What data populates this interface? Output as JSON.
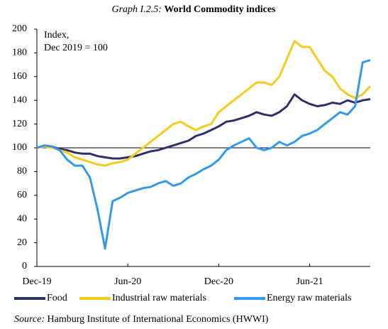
{
  "chart_data": {
    "type": "line",
    "title_label": "Graph I.2.5:",
    "title": "World Commodity indices",
    "annotations": [
      "Index,",
      "Dec 2019 = 100"
    ],
    "source_label": "Source:",
    "source": "Hamburg Institute of International Economics (HWWI)",
    "categories": [
      "Dec-19",
      null,
      null,
      null,
      null,
      null,
      null,
      null,
      null,
      null,
      null,
      null,
      "Jun-20",
      null,
      null,
      null,
      null,
      null,
      null,
      null,
      null,
      null,
      null,
      null,
      "Dec-20",
      null,
      null,
      null,
      null,
      null,
      null,
      null,
      null,
      null,
      null,
      null,
      "Jun-21",
      null,
      null,
      null,
      null,
      null,
      null,
      null,
      null
    ],
    "ylim": [
      0,
      200
    ],
    "yticks": [
      0,
      20,
      40,
      60,
      80,
      100,
      120,
      140,
      160,
      180,
      200
    ],
    "reference_line": 100,
    "series": [
      {
        "name": "Food",
        "color": "#2e3168",
        "values": [
          100,
          102,
          101,
          99,
          98,
          96,
          95,
          95,
          93,
          92,
          91,
          91,
          92,
          93,
          95,
          97,
          98,
          100,
          102,
          104,
          106,
          110,
          112,
          115,
          118,
          122,
          123,
          125,
          127,
          130,
          128,
          127,
          130,
          135,
          145,
          140,
          137,
          135,
          136,
          138,
          137,
          140,
          138,
          140,
          141
        ]
      },
      {
        "name": "Industrial raw materials",
        "color": "#f7cb1e",
        "values": [
          100,
          101,
          100,
          98,
          96,
          92,
          90,
          88,
          86,
          85,
          87,
          88,
          90,
          95,
          100,
          105,
          110,
          115,
          120,
          122,
          118,
          115,
          118,
          120,
          130,
          135,
          140,
          145,
          150,
          155,
          155,
          153,
          160,
          175,
          190,
          185,
          185,
          175,
          165,
          160,
          150,
          145,
          142,
          145,
          152
        ]
      },
      {
        "name": "Energy raw materials",
        "color": "#3399ee",
        "values": [
          100,
          102,
          101,
          98,
          90,
          85,
          85,
          75,
          48,
          15,
          55,
          58,
          62,
          64,
          66,
          67,
          70,
          72,
          68,
          70,
          75,
          78,
          82,
          85,
          90,
          98,
          102,
          105,
          108,
          100,
          98,
          100,
          105,
          102,
          105,
          110,
          112,
          115,
          120,
          125,
          130,
          128,
          135,
          172,
          174
        ]
      }
    ]
  }
}
